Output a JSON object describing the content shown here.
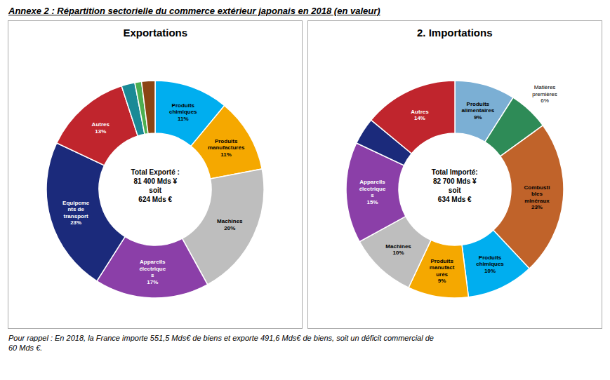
{
  "title": "Annexe 2 : Répartition sectorielle du commerce extérieur japonais en 2018 (en valeur)",
  "annotations": [
    "Pour rappel : En 2018, la France importe 551,5 Mds€ de biens et exporte 491,6 Mds€ de biens, soit un déficit commercial de\n60 Mds €."
  ],
  "chart_data": [
    {
      "type": "pie",
      "title": "Exportations",
      "annotations": [
        "Total Exporté :\n81 400 Mds ¥\nsoit\n624 Mds €"
      ],
      "categories": [
        "Produits\nchimiques",
        "Produits\nmanufacturés",
        "Machines",
        "Appareils\nélectrique\ns",
        "Equipeme\nnts de\ntransport",
        "Autres",
        null,
        null,
        null
      ],
      "values": [
        11,
        11,
        20,
        17,
        23,
        13,
        2,
        1,
        2
      ],
      "value_labels": [
        "11%",
        "11%",
        "20%",
        "17%",
        "23%",
        "13%",
        null,
        null,
        null
      ],
      "colors": [
        "#00AEEF",
        "#F5A800",
        "#BEBEBE",
        "#8B3FA8",
        "#1B2A7B",
        "#C0252D",
        "#1A8A96",
        "#4CAF50",
        "#8B4513"
      ],
      "data_labels": true
    },
    {
      "type": "pie",
      "title": "2. Importations",
      "annotations": [
        "Total Importé:\n82 700 Mds ¥\nsoit\n634 Mds €"
      ],
      "categories": [
        "Produits\nalimentaires",
        "Matières\npremières",
        "Combusti\nbles\nminéraux",
        "Produits\nchimiques",
        "Produits\nmanufact\nurés",
        "Machines",
        "Appareils\nélectrique\ns",
        null,
        "Autres"
      ],
      "values": [
        9,
        6,
        23,
        10,
        9,
        10,
        15,
        4,
        14
      ],
      "value_labels": [
        "9%",
        "6%",
        "23%",
        "10%",
        "9%",
        "10%",
        "15%",
        null,
        "14%"
      ],
      "colors": [
        "#7BAFD4",
        "#2E8B57",
        "#C0632A",
        "#00AEEF",
        "#F5A800",
        "#BEBEBE",
        "#8B3FA8",
        "#1B2A7B",
        "#C0252D"
      ],
      "data_labels": true
    }
  ]
}
